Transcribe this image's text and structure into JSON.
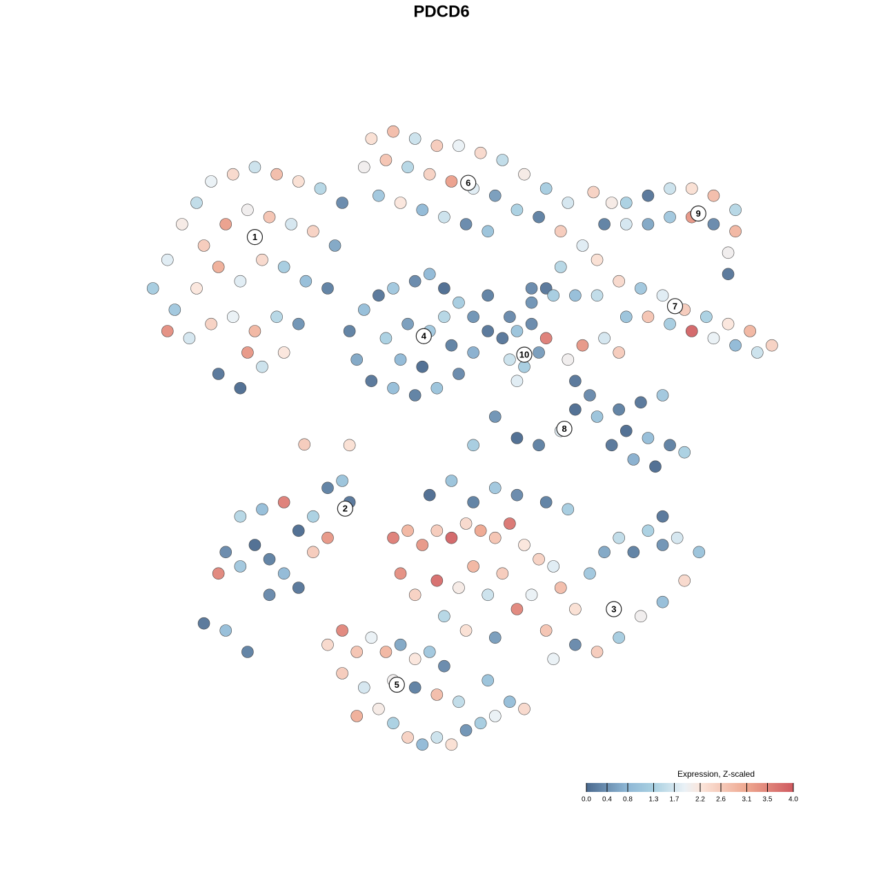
{
  "chart_data": {
    "type": "scatter",
    "title": "PDCD6",
    "xlim": [
      -45,
      45
    ],
    "ylim": [
      -45,
      45
    ],
    "x": [
      -42,
      -40,
      -38,
      -36,
      -34,
      -31,
      -28,
      -25,
      -22,
      -19,
      -16,
      -35,
      -32,
      -29,
      -26,
      -23,
      -20,
      -17,
      -39,
      -36,
      -33,
      -30,
      -27,
      -24,
      -21,
      -18,
      -37,
      -34,
      -31,
      -28,
      -25,
      -22,
      -33,
      -30,
      -27,
      -29,
      -40,
      -24,
      -12,
      -9,
      -6,
      -3,
      0,
      3,
      6,
      9,
      12,
      15,
      -13,
      -10,
      -7,
      -4,
      -1,
      2,
      5,
      8,
      11,
      -11,
      -8,
      -5,
      -2,
      1,
      4,
      14,
      17,
      -15,
      -13,
      -11,
      -9,
      -6,
      -4,
      -2,
      0,
      2,
      -14,
      -12,
      -9,
      -6,
      -3,
      0,
      2,
      -10,
      -7,
      -4,
      -1,
      -8,
      -5,
      -2,
      4,
      7,
      6,
      8,
      10,
      12,
      7,
      9,
      11,
      8,
      4,
      10,
      12,
      20,
      23,
      26,
      29,
      32,
      35,
      38,
      38,
      37,
      35,
      32,
      29,
      26,
      23,
      37,
      21,
      10,
      13,
      16,
      19,
      22,
      25,
      28,
      31,
      34,
      37,
      40,
      43,
      41,
      38,
      35,
      32,
      29,
      26,
      23,
      20,
      17,
      15,
      22,
      14,
      19,
      16,
      18,
      16,
      19,
      22,
      25,
      28,
      23,
      26,
      29,
      31,
      27,
      24,
      21,
      14,
      11,
      8,
      5,
      2,
      -15,
      -32,
      -30,
      -28,
      -26,
      -24,
      -22,
      -30,
      -27,
      -24,
      -22,
      -20,
      -18,
      -16,
      -15,
      -20,
      -26,
      -18,
      -33,
      -35,
      -32,
      -29,
      -18,
      -16,
      -14,
      -12,
      -10,
      -8,
      -6,
      -4,
      -2,
      -16,
      -13,
      -11,
      -9,
      -7,
      -5,
      -3,
      -1,
      1,
      3,
      5,
      7,
      9,
      0,
      -3,
      -6,
      -14,
      4,
      -9,
      -9,
      -7,
      -5,
      -3,
      -1,
      1,
      3,
      5,
      7,
      9,
      11,
      13,
      -8,
      -6,
      -3,
      0,
      2,
      4,
      6,
      8,
      10,
      14,
      16,
      18,
      20,
      22,
      24,
      26,
      28,
      30,
      33,
      31,
      28,
      25,
      22,
      19,
      16,
      13,
      12,
      -2,
      1,
      5,
      2,
      5,
      8,
      -4,
      -1,
      12,
      15,
      28,
      -21.2,
      18.5
    ],
    "y": [
      21,
      25,
      30,
      33,
      36,
      37,
      38,
      37,
      36,
      35,
      33,
      27,
      30,
      32,
      31,
      30,
      29,
      27,
      18,
      21,
      24,
      22,
      25,
      24,
      22,
      21,
      14,
      16,
      17,
      15,
      17,
      16,
      9,
      7,
      10,
      12,
      15,
      12,
      42,
      43,
      42,
      41,
      41,
      40,
      39,
      37,
      35,
      33,
      38,
      39,
      38,
      37,
      36,
      35,
      34,
      32,
      31,
      34,
      33,
      32,
      31,
      30,
      29,
      29,
      27,
      15,
      18,
      20,
      21,
      22,
      23,
      21,
      19,
      17,
      11,
      8,
      7,
      6,
      7,
      9,
      12,
      14,
      16,
      15,
      13,
      11,
      10,
      17,
      15,
      17,
      14,
      15,
      16,
      14,
      11,
      10,
      12,
      8,
      20,
      19,
      21,
      30,
      33,
      34,
      35,
      35,
      34,
      32,
      29,
      26,
      30,
      31,
      31,
      30,
      30,
      23,
      33,
      21,
      20,
      20,
      20,
      22,
      21,
      20,
      18,
      17,
      16,
      15,
      13,
      12,
      13,
      14,
      15,
      16,
      17,
      17,
      14,
      13,
      11,
      12,
      24,
      25,
      8,
      6,
      4,
      3,
      4,
      5,
      6,
      1,
      0,
      -1,
      -2,
      -4,
      -3,
      -1,
      1,
      -1,
      0,
      3,
      -1,
      -1,
      -16,
      -18,
      -15,
      -17,
      -19,
      -21,
      -11,
      -10,
      -9,
      -13,
      -11,
      -7,
      -6,
      -9,
      -16,
      -22,
      -14,
      -19,
      -26,
      -27,
      -30,
      -29,
      -27,
      -30,
      -28,
      -30,
      -29,
      -31,
      -30,
      -32,
      -33,
      -35,
      -38,
      -40,
      -42,
      -43,
      -42,
      -43,
      -41,
      -40,
      -39,
      -37,
      -38,
      -37,
      -36,
      -35,
      -39,
      -34,
      -34,
      -14,
      -13,
      -15,
      -13,
      -14,
      -12,
      -13,
      -14,
      -12,
      -15,
      -17,
      -18,
      -19,
      -22,
      -20,
      -21,
      -18,
      -22,
      -19,
      -24,
      -22,
      -21,
      -24,
      -19,
      -16,
      -14,
      -16,
      -13,
      -15,
      -14,
      -16,
      -20,
      -23,
      -25,
      -28,
      -30,
      -29,
      -31,
      -27,
      -25,
      -27,
      -28,
      -9,
      -7,
      -8,
      -8,
      -6,
      -9,
      -10,
      -11,
      -0.9,
      34.5
    ],
    "values": [
      1.2,
      1.8,
      2.1,
      1.5,
      1.9,
      2.4,
      1.6,
      2.8,
      2.3,
      1.4,
      0.3,
      2.6,
      3.2,
      2.0,
      2.7,
      1.7,
      2.5,
      0.6,
      1.1,
      2.2,
      3.0,
      1.8,
      2.4,
      1.2,
      0.9,
      0.2,
      1.7,
      2.5,
      1.9,
      2.9,
      1.4,
      0.4,
      0.1,
      0,
      1.6,
      3.3,
      3.4,
      2.2,
      2.3,
      2.8,
      1.6,
      2.6,
      1.9,
      2.4,
      1.5,
      2.1,
      1.2,
      1.7,
      2.0,
      2.7,
      1.4,
      2.5,
      3.2,
      1.8,
      0.5,
      1.3,
      0.2,
      1.1,
      2.2,
      0.8,
      1.6,
      0.3,
      1.0,
      2.6,
      1.8,
      0.2,
      0.9,
      0.1,
      1.1,
      0.3,
      0.8,
      0,
      1.2,
      0.4,
      0.6,
      0.1,
      0.9,
      0.2,
      1.0,
      0.3,
      0.7,
      1.3,
      0.5,
      1.1,
      0.2,
      0.8,
      0,
      1.4,
      0.1,
      0.3,
      0.1,
      1.0,
      0.3,
      3.6,
      1.6,
      1.2,
      0.5,
      1.8,
      0.2,
      0.4,
      0.1,
      0.2,
      1.3,
      0.1,
      1.6,
      2.3,
      2.8,
      1.4,
      2.9,
      2.0,
      0.3,
      3.3,
      1.1,
      0.6,
      1.7,
      0.1,
      2.1,
      0.3,
      1.2,
      0.9,
      1.5,
      2.4,
      1.1,
      1.8,
      2.6,
      1.3,
      2.2,
      2.9,
      2.5,
      1.6,
      0.8,
      1.9,
      3.9,
      1.2,
      2.7,
      1.0,
      1.7,
      3.3,
      2.0,
      2.6,
      1.4,
      2.3,
      0.1,
      0.3,
      0,
      1.0,
      0.2,
      0.1,
      1.1,
      0,
      0.9,
      0.2,
      1.3,
      0,
      0.7,
      0.1,
      1.8,
      0.2,
      0,
      0.4,
      1.2,
      2.3,
      0.3,
      1.1,
      0,
      0.2,
      0.8,
      0.1,
      1.4,
      0.9,
      3.6,
      0,
      1.3,
      0.2,
      1.0,
      0.1,
      2.6,
      0.3,
      3.3,
      3.5,
      0.1,
      0.9,
      0.2,
      2.4,
      3.5,
      2.7,
      1.9,
      2.9,
      0.6,
      2.2,
      1.1,
      0.3,
      2.6,
      1.7,
      2.1,
      1.3,
      2.5,
      0.8,
      1.6,
      2.3,
      0.4,
      1.2,
      1.9,
      0.9,
      2.4,
      1.5,
      2.8,
      0.2,
      3.0,
      1.0,
      2.0,
      3.6,
      2.9,
      3.3,
      2.6,
      3.9,
      2.4,
      3.1,
      2.7,
      3.7,
      2.2,
      2.5,
      1.8,
      3.4,
      2.5,
      3.8,
      2.1,
      2.9,
      1.6,
      2.6,
      3.5,
      1.9,
      2.8,
      2.3,
      1.1,
      0.6,
      1.5,
      0.2,
      1.3,
      0.4,
      1.7,
      1.0,
      2.4,
      0.9,
      2.0,
      1.2,
      2.6,
      0.3,
      1.9,
      2.7,
      1.4,
      2.3,
      0.5,
      0.2,
      1.1,
      0.3,
      0,
      1.0,
      0.2,
      1.2,
      0.1,
      2.6,
      2.5
    ],
    "cluster_labels": [
      {
        "label": "1",
        "x": -28,
        "y": 28.2
      },
      {
        "label": "2",
        "x": -15.6,
        "y": -9.9
      },
      {
        "label": "3",
        "x": 21.3,
        "y": -24
      },
      {
        "label": "4",
        "x": -4.8,
        "y": 14.3
      },
      {
        "label": "5",
        "x": -8.5,
        "y": -34.6
      },
      {
        "label": "6",
        "x": 1.3,
        "y": 35.8
      },
      {
        "label": "7",
        "x": 29.7,
        "y": 18.5
      },
      {
        "label": "8",
        "x": 14.5,
        "y": 1.3
      },
      {
        "label": "9",
        "x": 32.9,
        "y": 31.5
      },
      {
        "label": "10",
        "x": 9,
        "y": 11.7
      }
    ],
    "colorbar": {
      "title": "Expression, Z-scaled",
      "clim": [
        0,
        4
      ],
      "ticks": [
        {
          "value": 0,
          "label": "0.0"
        },
        0.4,
        0.8,
        1.3,
        1.7,
        2.2,
        2.6,
        3.1,
        3.5,
        {
          "value": 4,
          "label": "4.0"
        }
      ]
    },
    "colorscale": [
      [
        0,
        "#4b6a8f"
      ],
      [
        0.8,
        "#8fb8d6"
      ],
      [
        1.3,
        "#a9d0e1"
      ],
      [
        1.9,
        "#eaf1f6"
      ],
      [
        2.2,
        "#fbe6dc"
      ],
      [
        3.1,
        "#eea78f"
      ],
      [
        4,
        "#cf5a60"
      ]
    ]
  }
}
